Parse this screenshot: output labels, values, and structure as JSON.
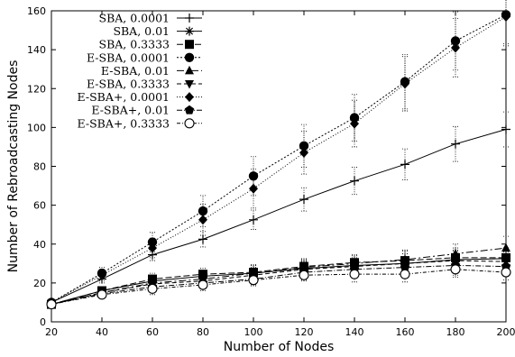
{
  "chart_data": {
    "type": "line",
    "title": "",
    "xlabel": "Number of Nodes",
    "ylabel": "Number of Rebroadcasting Nodes",
    "x": [
      20,
      40,
      60,
      80,
      100,
      120,
      140,
      160,
      180,
      200
    ],
    "xlim": [
      20,
      200
    ],
    "ylim": [
      0,
      160
    ],
    "x_ticks": [
      20,
      40,
      60,
      80,
      100,
      120,
      140,
      160,
      180,
      200
    ],
    "y_ticks": [
      0,
      20,
      40,
      60,
      80,
      100,
      120,
      140,
      160
    ],
    "grid": false,
    "legend_position": "top-left",
    "series": [
      {
        "name": "SBA, 0.0001",
        "marker": "plus",
        "dash": "",
        "values": [
          10,
          22,
          34.5,
          42.5,
          52.5,
          63,
          72.5,
          81,
          91.5,
          99
        ],
        "error": [
          1,
          2,
          3,
          4,
          5,
          6,
          7,
          8,
          9,
          9
        ]
      },
      {
        "name": "SBA, 0.01",
        "marker": "star",
        "dash": "",
        "values": [
          9,
          16,
          21,
          23.5,
          25,
          27.5,
          29,
          30,
          32,
          32.5
        ],
        "error": [
          1,
          2,
          3,
          3,
          4,
          4,
          4,
          5,
          5,
          5
        ]
      },
      {
        "name": "SBA, 0.3333",
        "marker": "square",
        "dash": "7 3",
        "values": [
          9,
          16,
          22,
          24.5,
          25.5,
          28.5,
          30.5,
          31.5,
          33,
          33
        ],
        "error": [
          1,
          2,
          3,
          3,
          4,
          4,
          4,
          5,
          5,
          5
        ]
      },
      {
        "name": "E-SBA, 0.0001",
        "marker": "circle-filled",
        "dash": "2 2",
        "values": [
          10,
          25,
          41,
          57,
          75,
          90.5,
          105,
          123.5,
          144.5,
          158
        ],
        "error": [
          1,
          3,
          5,
          8,
          10,
          11,
          12,
          14,
          15,
          15
        ]
      },
      {
        "name": "E-SBA, 0.01",
        "marker": "triangle-up",
        "dash": "8 3 2 3",
        "values": [
          9,
          15,
          20,
          22,
          25,
          28,
          30,
          32,
          35,
          38
        ],
        "error": [
          1,
          2,
          3,
          3,
          4,
          4,
          4,
          5,
          5,
          6
        ]
      },
      {
        "name": "E-SBA, 0.3333",
        "marker": "triangle-down",
        "dash": "5 3",
        "values": [
          9,
          15,
          19.5,
          21,
          24,
          27,
          28.5,
          30,
          31.5,
          31
        ],
        "error": [
          1,
          2,
          3,
          3,
          4,
          4,
          4,
          5,
          5,
          5
        ]
      },
      {
        "name": "E-SBA+, 0.0001",
        "marker": "diamond",
        "dash": "1 2",
        "values": [
          10,
          24,
          38,
          52.5,
          68.5,
          87,
          102,
          122.5,
          141,
          157
        ],
        "error": [
          1,
          3,
          5,
          8,
          10,
          11,
          12,
          14,
          15,
          15
        ]
      },
      {
        "name": "E-SBA+, 0.01",
        "marker": "pentagon",
        "dash": "6 2 1 2",
        "values": [
          9,
          14.5,
          18,
          20,
          22,
          25.5,
          27,
          28,
          29,
          28.5
        ],
        "error": [
          1,
          2,
          3,
          3,
          3,
          4,
          4,
          4,
          5,
          5
        ]
      },
      {
        "name": "E-SBA+, 0.3333",
        "marker": "circle-open",
        "dash": "4 2 1 2",
        "values": [
          9,
          14,
          17,
          19,
          21.5,
          24,
          24.5,
          24.5,
          27,
          25.5
        ],
        "error": [
          1,
          2,
          3,
          3,
          3,
          3,
          4,
          4,
          4,
          4
        ]
      }
    ]
  }
}
